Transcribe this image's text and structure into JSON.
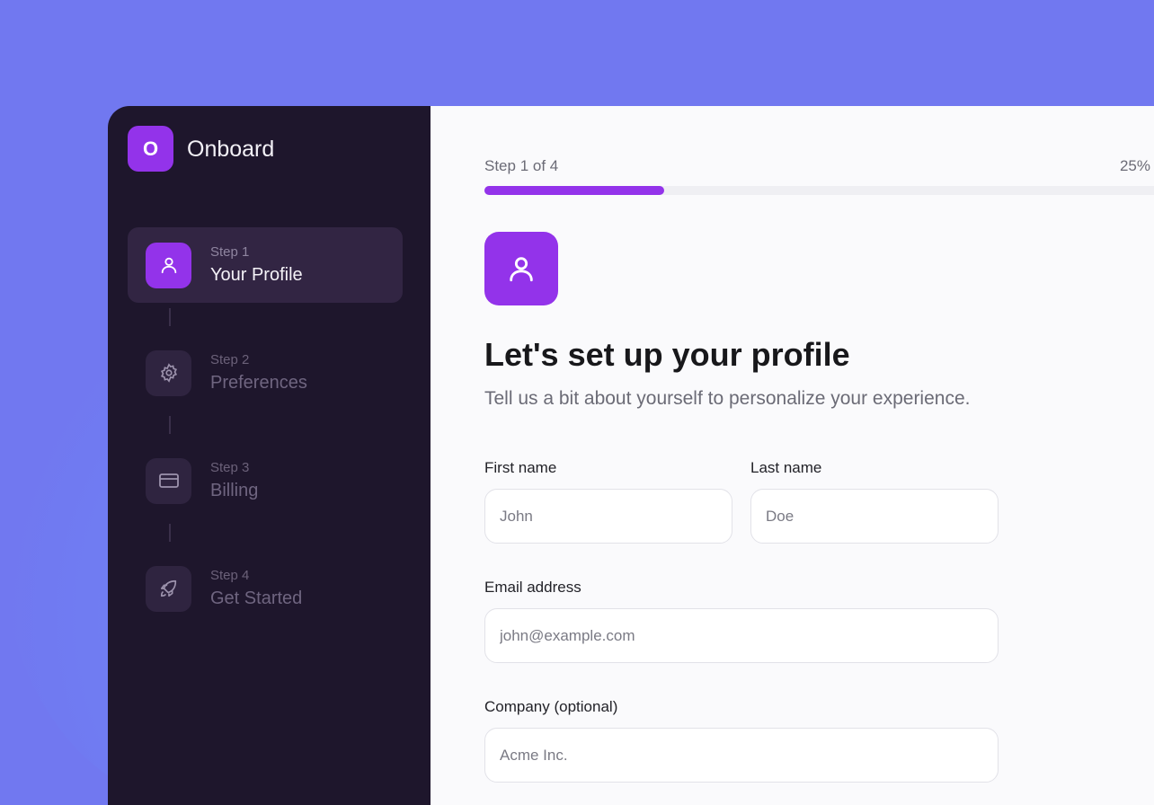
{
  "app": {
    "logo_letter": "O",
    "name": "Onboard"
  },
  "steps": [
    {
      "number": "Step 1",
      "label": "Your Profile",
      "icon": "user-icon",
      "active": true
    },
    {
      "number": "Step 2",
      "label": "Preferences",
      "icon": "gear-icon",
      "active": false
    },
    {
      "number": "Step 3",
      "label": "Billing",
      "icon": "credit-card-icon",
      "active": false
    },
    {
      "number": "Step 4",
      "label": "Get Started",
      "icon": "rocket-icon",
      "active": false
    }
  ],
  "progress": {
    "label": "Step 1 of 4",
    "percent_text": "25%",
    "value": 0.25
  },
  "header": {
    "icon": "user-icon",
    "title": "Let's set up your profile",
    "subtitle": "Tell us a bit about yourself to personalize your experience."
  },
  "form": {
    "first_name": {
      "label": "First name",
      "placeholder": "John",
      "value": ""
    },
    "last_name": {
      "label": "Last name",
      "placeholder": "Doe",
      "value": ""
    },
    "email": {
      "label": "Email address",
      "placeholder": "john@example.com",
      "value": ""
    },
    "company": {
      "label": "Company (optional)",
      "placeholder": "Acme Inc.",
      "value": ""
    }
  },
  "colors": {
    "accent": "#9333ea",
    "sidebar": "#1e162c",
    "background": "#7178f0"
  }
}
